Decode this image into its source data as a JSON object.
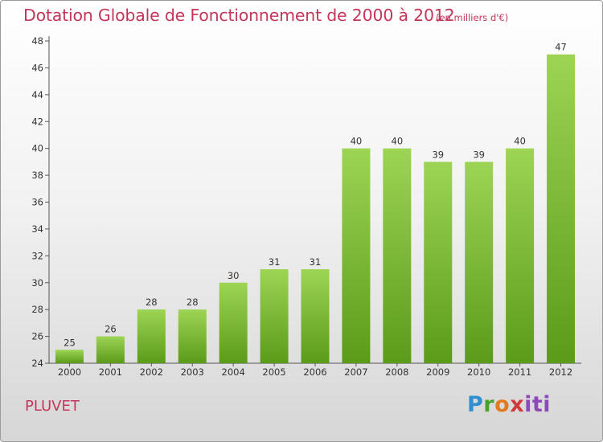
{
  "title": "Dotation Globale de Fonctionnement de 2000 à 2012",
  "unit_note": "(en milliers d'€)",
  "commune": "PLUVET",
  "logo": {
    "parts": [
      "P",
      "r",
      "o",
      "x",
      "iti"
    ]
  },
  "colors": {
    "title": "#c4375a",
    "bar_top": "#9dd454",
    "bar_bottom": "#5b9b1a",
    "axis": "#555555"
  },
  "chart_data": {
    "type": "bar",
    "categories": [
      "2000",
      "2001",
      "2002",
      "2003",
      "2004",
      "2005",
      "2006",
      "2007",
      "2008",
      "2009",
      "2010",
      "2011",
      "2012"
    ],
    "values": [
      25,
      26,
      28,
      28,
      30,
      31,
      31,
      40,
      40,
      39,
      39,
      40,
      47
    ],
    "ylim": [
      24,
      48
    ],
    "yticks": [
      24,
      26,
      28,
      30,
      32,
      34,
      36,
      38,
      40,
      42,
      44,
      46,
      48
    ],
    "grid": false,
    "title": "Dotation Globale de Fonctionnement de 2000 à 2012",
    "ylabel": "",
    "xlabel": ""
  }
}
